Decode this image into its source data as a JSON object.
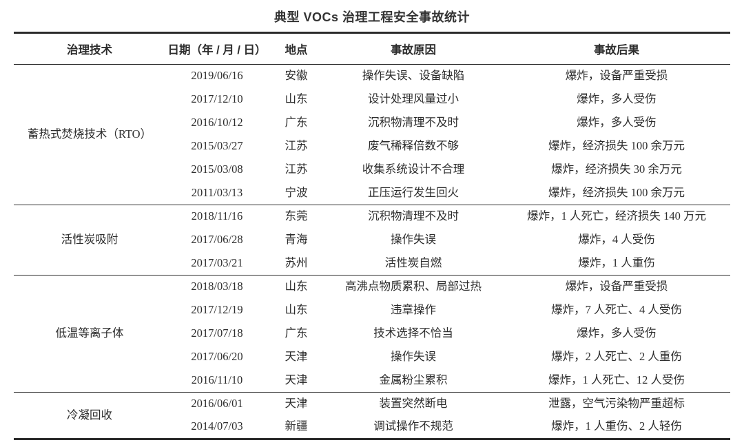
{
  "title": "典型 VOCs 治理工程安全事故统计",
  "table": {
    "headers": {
      "technology": "治理技术",
      "date": "日期（年 / 月 / 日）",
      "location": "地点",
      "cause": "事故原因",
      "consequence": "事故后果"
    },
    "groups": [
      {
        "technology": "蓄热式焚烧技术（RTO）",
        "rows": [
          {
            "date": "2019/06/16",
            "location": "安徽",
            "cause": "操作失误、设备缺陷",
            "consequence": "爆炸，设备严重受损"
          },
          {
            "date": "2017/12/10",
            "location": "山东",
            "cause": "设计处理风量过小",
            "consequence": "爆炸，多人受伤"
          },
          {
            "date": "2016/10/12",
            "location": "广东",
            "cause": "沉积物清理不及时",
            "consequence": "爆炸，多人受伤"
          },
          {
            "date": "2015/03/27",
            "location": "江苏",
            "cause": "废气稀释倍数不够",
            "consequence": "爆炸，经济损失 100 余万元"
          },
          {
            "date": "2015/03/08",
            "location": "江苏",
            "cause": "收集系统设计不合理",
            "consequence": "爆炸，经济损失 30 余万元"
          },
          {
            "date": "2011/03/13",
            "location": "宁波",
            "cause": "正压运行发生回火",
            "consequence": "爆炸，经济损失 100 余万元"
          }
        ]
      },
      {
        "technology": "活性炭吸附",
        "rows": [
          {
            "date": "2018/11/16",
            "location": "东莞",
            "cause": "沉积物清理不及时",
            "consequence": "爆炸，1 人死亡，经济损失 140 万元"
          },
          {
            "date": "2017/06/28",
            "location": "青海",
            "cause": "操作失误",
            "consequence": "爆炸，4 人受伤"
          },
          {
            "date": "2017/03/21",
            "location": "苏州",
            "cause": "活性炭自燃",
            "consequence": "爆炸，1 人重伤"
          }
        ]
      },
      {
        "technology": "低温等离子体",
        "rows": [
          {
            "date": "2018/03/18",
            "location": "山东",
            "cause": "高沸点物质累积、局部过热",
            "consequence": "爆炸，设备严重受损"
          },
          {
            "date": "2017/12/19",
            "location": "山东",
            "cause": "违章操作",
            "consequence": "爆炸，7 人死亡、4 人受伤"
          },
          {
            "date": "2017/07/18",
            "location": "广东",
            "cause": "技术选择不恰当",
            "consequence": "爆炸，多人受伤"
          },
          {
            "date": "2017/06/20",
            "location": "天津",
            "cause": "操作失误",
            "consequence": "爆炸，2 人死亡、2 人重伤"
          },
          {
            "date": "2016/11/10",
            "location": "天津",
            "cause": "金属粉尘累积",
            "consequence": "爆炸，1 人死亡、12 人受伤"
          }
        ]
      },
      {
        "technology": "冷凝回收",
        "rows": [
          {
            "date": "2016/06/01",
            "location": "天津",
            "cause": "装置突然断电",
            "consequence": "泄露，空气污染物严重超标"
          },
          {
            "date": "2014/07/03",
            "location": "新疆",
            "cause": "调试操作不规范",
            "consequence": "爆炸，1 人重伤、2 人轻伤"
          }
        ]
      }
    ]
  },
  "colors": {
    "text": "#2d2d2d",
    "rule": "#2b2b2b",
    "background": "#ffffff"
  }
}
